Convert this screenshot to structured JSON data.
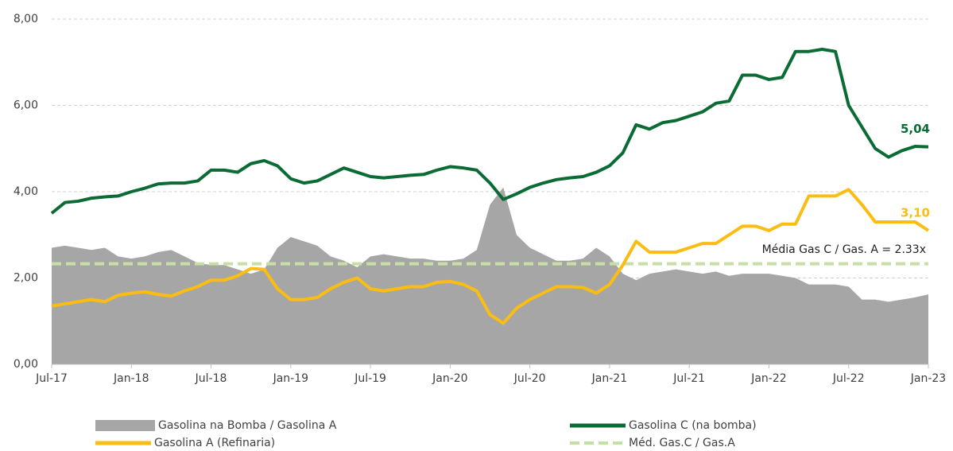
{
  "chart_data": {
    "type": "line",
    "categories": [
      "Jul-17",
      null,
      null,
      null,
      null,
      null,
      "Jan-18",
      null,
      null,
      null,
      null,
      null,
      "Jul-18",
      null,
      null,
      null,
      null,
      null,
      "Jan-19",
      null,
      null,
      null,
      null,
      null,
      "Jul-19",
      null,
      null,
      null,
      null,
      null,
      "Jan-20",
      null,
      null,
      null,
      null,
      null,
      "Jul-20",
      null,
      null,
      null,
      null,
      null,
      "Jan-21",
      null,
      null,
      null,
      null,
      null,
      "Jul-21",
      null,
      null,
      null,
      null,
      null,
      "Jan-22",
      null,
      null,
      null,
      null,
      null,
      "Jul-22",
      null,
      null,
      null,
      null,
      null,
      "Jan-23"
    ],
    "ylim": [
      0,
      8
    ],
    "yticks": [
      {
        "value": 0,
        "label": "0,00"
      },
      {
        "value": 2,
        "label": "2,00"
      },
      {
        "value": 4,
        "label": "4,00"
      },
      {
        "value": 6,
        "label": "6,00"
      },
      {
        "value": 8,
        "label": "8,00"
      }
    ],
    "grid": true,
    "series": [
      {
        "name": "Gasolina na Bomba / Gasolina A",
        "type": "area",
        "color": "#a6a6a6",
        "values": [
          2.7,
          2.75,
          2.7,
          2.65,
          2.7,
          2.5,
          2.45,
          2.5,
          2.6,
          2.65,
          2.5,
          2.35,
          2.3,
          2.3,
          2.2,
          2.1,
          2.2,
          2.7,
          2.95,
          2.85,
          2.75,
          2.5,
          2.4,
          2.25,
          2.5,
          2.55,
          2.5,
          2.45,
          2.45,
          2.4,
          2.4,
          2.45,
          2.65,
          3.7,
          4.1,
          3.0,
          2.7,
          2.55,
          2.4,
          2.4,
          2.45,
          2.7,
          2.5,
          2.1,
          1.95,
          2.1,
          2.15,
          2.2,
          2.15,
          2.1,
          2.15,
          2.05,
          2.1,
          2.1,
          2.1,
          2.05,
          2.0,
          1.85,
          1.85,
          1.85,
          1.8,
          1.5,
          1.5,
          1.45,
          1.5,
          1.55,
          1.62
        ]
      },
      {
        "name": "Gasolina C (na bomba)",
        "type": "line",
        "color": "#0b6b35",
        "values": [
          3.5,
          3.75,
          3.78,
          3.85,
          3.88,
          3.9,
          4.0,
          4.08,
          4.18,
          4.2,
          4.2,
          4.25,
          4.5,
          4.5,
          4.45,
          4.65,
          4.72,
          4.6,
          4.3,
          4.2,
          4.25,
          4.4,
          4.55,
          4.45,
          4.35,
          4.32,
          4.35,
          4.38,
          4.4,
          4.5,
          4.58,
          4.55,
          4.5,
          4.2,
          3.82,
          3.95,
          4.1,
          4.2,
          4.28,
          4.32,
          4.35,
          4.45,
          4.6,
          4.9,
          5.55,
          5.45,
          5.6,
          5.65,
          5.75,
          5.85,
          6.05,
          6.1,
          6.7,
          6.7,
          6.6,
          6.65,
          7.25,
          7.25,
          7.3,
          7.25,
          6.0,
          5.5,
          5.0,
          4.8,
          4.95,
          5.05,
          5.04
        ],
        "value_labels": [
          null,
          null,
          null,
          null,
          null,
          null,
          null,
          null,
          null,
          null,
          null,
          null,
          null,
          null,
          null,
          null,
          null,
          null,
          null,
          null,
          null,
          null,
          null,
          null,
          null,
          null,
          null,
          null,
          null,
          null,
          null,
          null,
          null,
          null,
          null,
          null,
          null,
          null,
          null,
          null,
          null,
          null,
          null,
          null,
          null,
          null,
          null,
          null,
          null,
          null,
          null,
          null,
          null,
          null,
          null,
          null,
          null,
          null,
          null,
          null,
          null,
          null,
          null,
          null,
          null,
          null,
          "5,04"
        ]
      },
      {
        "name": "Gasolina A (Refinaria)",
        "type": "line",
        "color": "#fbbd12",
        "values": [
          1.35,
          1.4,
          1.45,
          1.5,
          1.45,
          1.6,
          1.65,
          1.68,
          1.62,
          1.58,
          1.7,
          1.8,
          1.95,
          1.95,
          2.05,
          2.22,
          2.2,
          1.75,
          1.5,
          1.5,
          1.55,
          1.75,
          1.9,
          2.0,
          1.75,
          1.7,
          1.75,
          1.8,
          1.8,
          1.9,
          1.92,
          1.85,
          1.7,
          1.15,
          0.95,
          1.3,
          1.5,
          1.65,
          1.8,
          1.8,
          1.78,
          1.65,
          1.85,
          2.3,
          2.85,
          2.6,
          2.6,
          2.6,
          2.7,
          2.8,
          2.8,
          3.0,
          3.2,
          3.2,
          3.1,
          3.25,
          3.25,
          3.9,
          3.9,
          3.9,
          4.05,
          3.7,
          3.3,
          3.3,
          3.3,
          3.3,
          3.1
        ],
        "value_labels": [
          null,
          null,
          null,
          null,
          null,
          null,
          null,
          null,
          null,
          null,
          null,
          null,
          null,
          null,
          null,
          null,
          null,
          null,
          null,
          null,
          null,
          null,
          null,
          null,
          null,
          null,
          null,
          null,
          null,
          null,
          null,
          null,
          null,
          null,
          null,
          null,
          null,
          null,
          null,
          null,
          null,
          null,
          null,
          null,
          null,
          null,
          null,
          null,
          null,
          null,
          null,
          null,
          null,
          null,
          null,
          null,
          null,
          null,
          null,
          null,
          null,
          null,
          null,
          null,
          null,
          null,
          "3,10"
        ]
      },
      {
        "name": "Méd. Gas.C / Gas.A",
        "type": "hline",
        "color": "#c5e0a5",
        "value": 2.33
      }
    ],
    "annotation": "Média Gas C / Gas. A = 2.33x"
  }
}
